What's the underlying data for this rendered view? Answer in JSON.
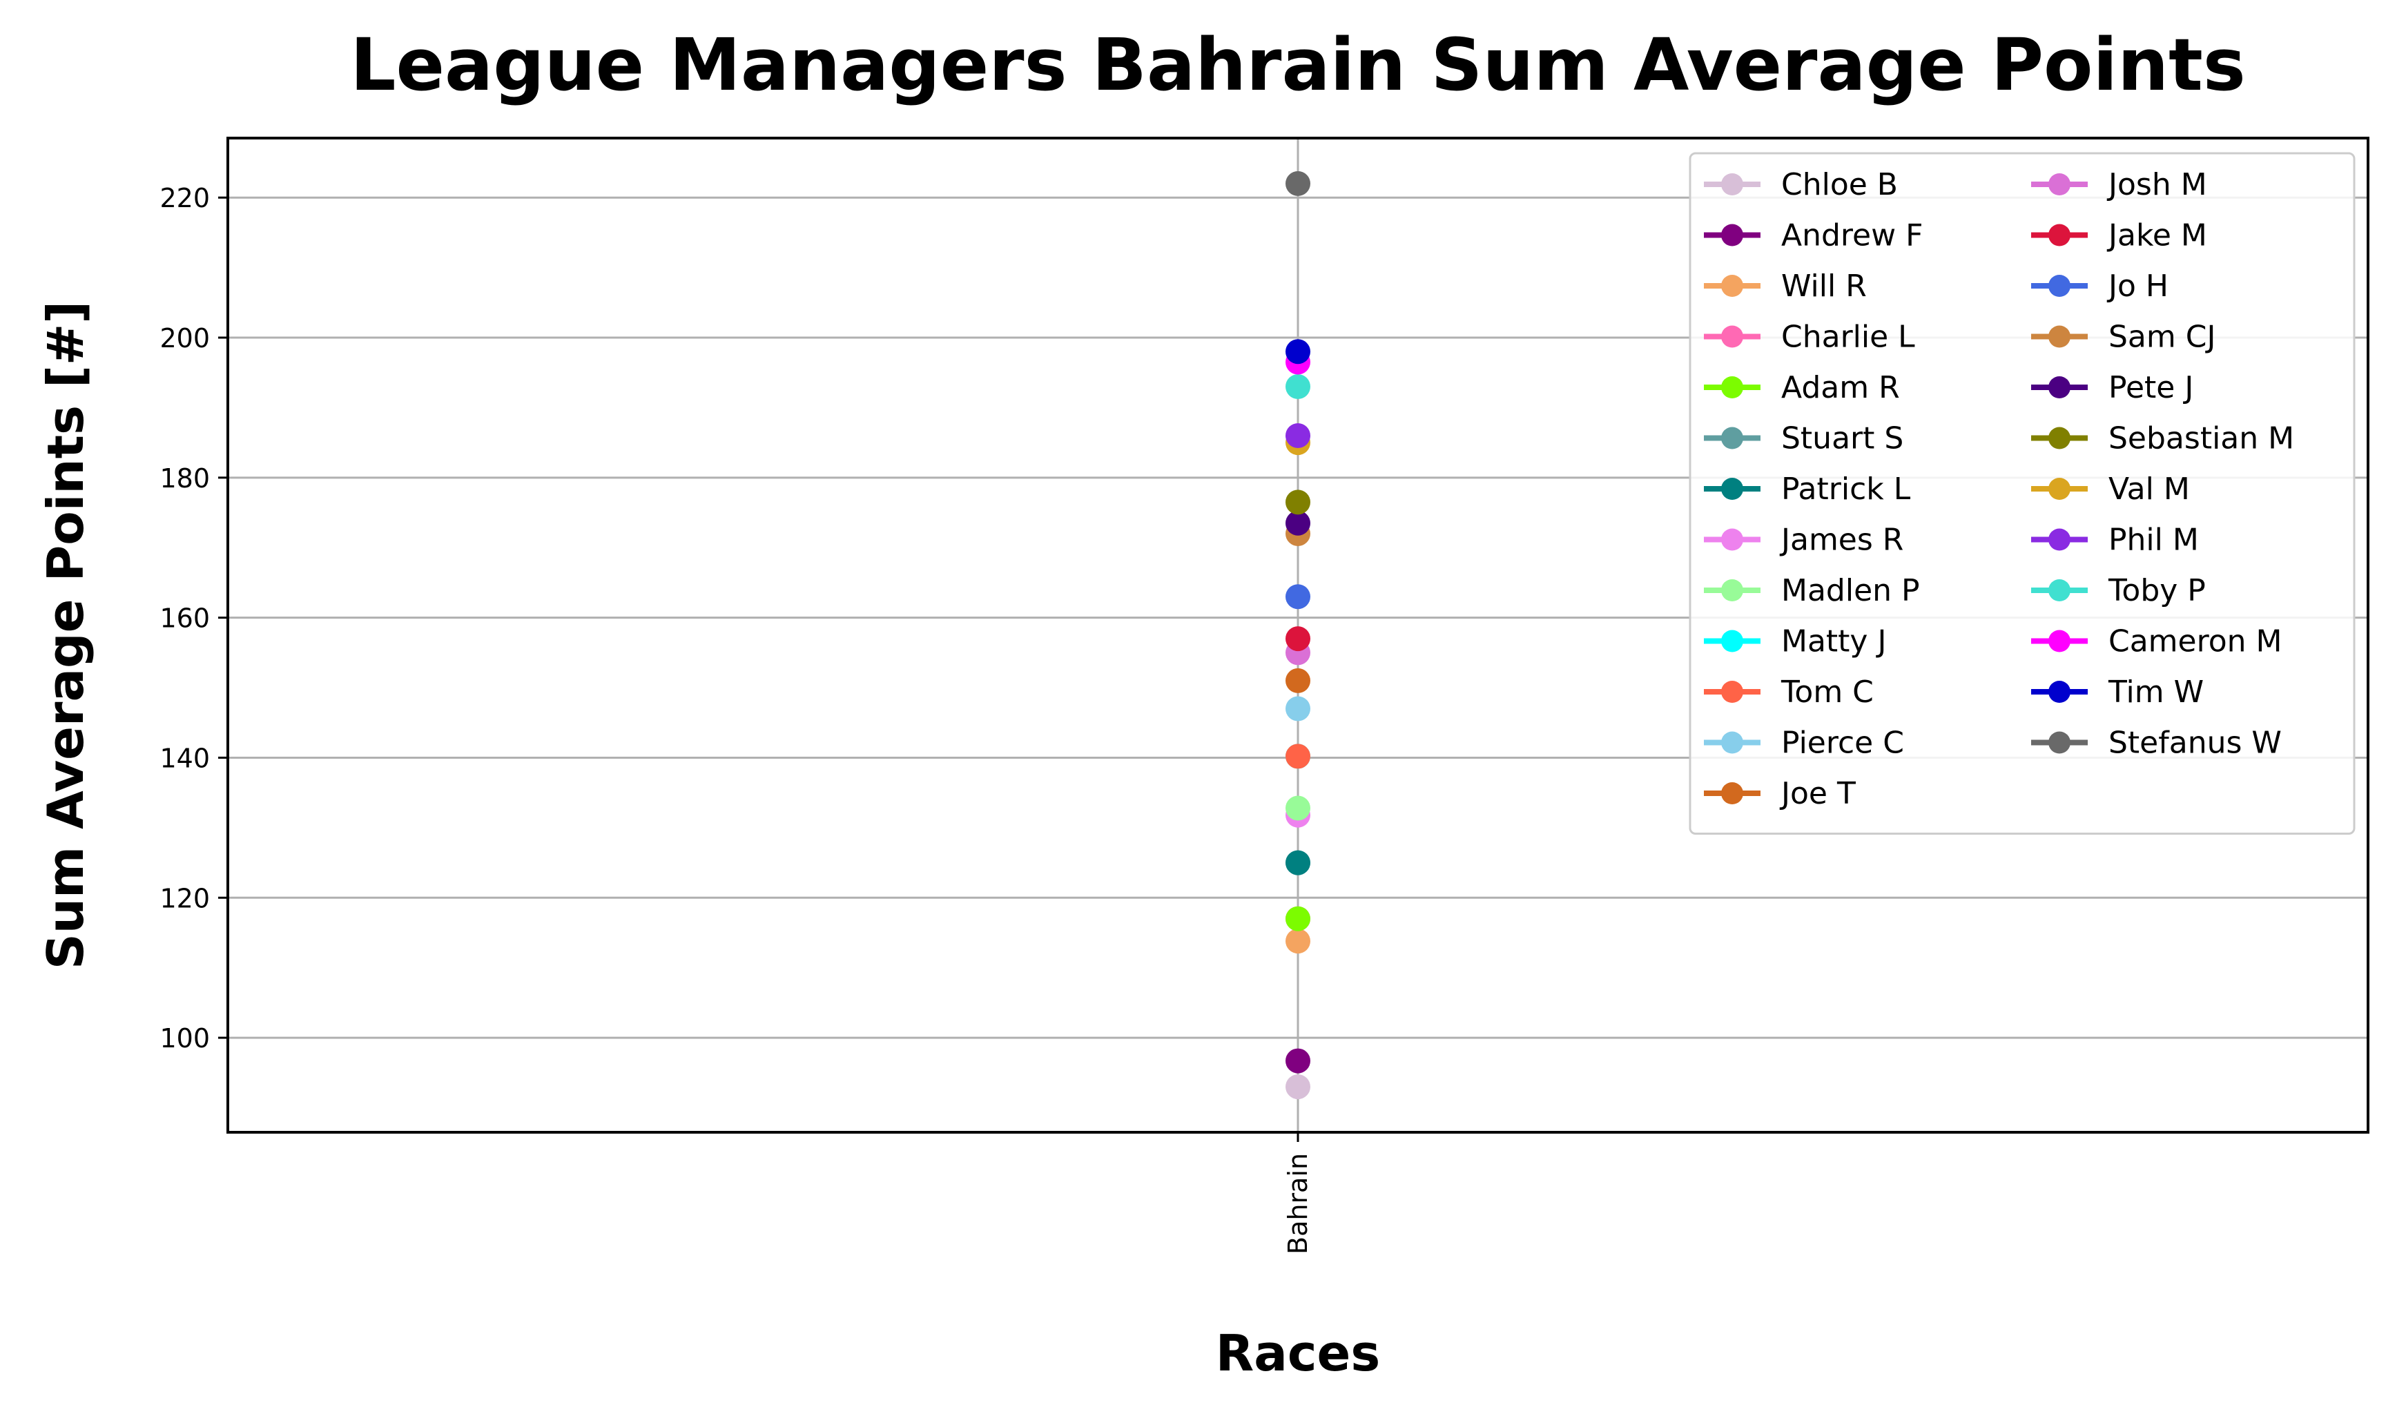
{
  "chart_data": {
    "type": "line",
    "title": "League Managers Bahrain Sum Average Points",
    "xlabel": "Races",
    "ylabel": "Sum Average Points [#]",
    "categories": [
      "Bahrain"
    ],
    "ylim": [
      86.5,
      228.5
    ],
    "yticks": [
      100,
      120,
      140,
      160,
      180,
      200,
      220
    ],
    "grid": true,
    "legend_position": "top-right",
    "legend_columns": 2,
    "series": [
      {
        "name": "Chloe B",
        "color": "#d8bfd8",
        "values": [
          93
        ]
      },
      {
        "name": "Andrew F",
        "color": "#800080",
        "values": [
          96.7
        ]
      },
      {
        "name": "Will R",
        "color": "#f4a460",
        "values": [
          113.8
        ]
      },
      {
        "name": "Charlie L",
        "color": "#ff69b4",
        "values": [
          117
        ]
      },
      {
        "name": "Adam R",
        "color": "#7cfc00",
        "values": [
          117
        ]
      },
      {
        "name": "Stuart S",
        "color": "#5f9ea0",
        "values": [
          125
        ]
      },
      {
        "name": "Patrick L",
        "color": "#008080",
        "values": [
          125
        ]
      },
      {
        "name": "James R",
        "color": "#ee82ee",
        "values": [
          131.8
        ]
      },
      {
        "name": "Madlen P",
        "color": "#98fb98",
        "values": [
          132.8
        ]
      },
      {
        "name": "Matty J",
        "color": "#00ffff",
        "values": [
          140.2
        ]
      },
      {
        "name": "Tom C",
        "color": "#ff6347",
        "values": [
          140.2
        ]
      },
      {
        "name": "Pierce C",
        "color": "#87ceeb",
        "values": [
          147
        ]
      },
      {
        "name": "Joe T",
        "color": "#d2691e",
        "values": [
          151
        ]
      },
      {
        "name": "Josh M",
        "color": "#da70d6",
        "values": [
          155
        ]
      },
      {
        "name": "Jake M",
        "color": "#dc143c",
        "values": [
          157
        ]
      },
      {
        "name": "Jo H",
        "color": "#4169e1",
        "values": [
          163
        ]
      },
      {
        "name": "Sam CJ",
        "color": "#cd853f",
        "values": [
          172
        ]
      },
      {
        "name": "Pete J",
        "color": "#4b0082",
        "values": [
          173.5
        ]
      },
      {
        "name": "Sebastian M",
        "color": "#808000",
        "values": [
          176.5
        ]
      },
      {
        "name": "Val M",
        "color": "#daa520",
        "values": [
          185
        ]
      },
      {
        "name": "Phil M",
        "color": "#8a2be2",
        "values": [
          186
        ]
      },
      {
        "name": "Toby P",
        "color": "#40e0d0",
        "values": [
          193
        ]
      },
      {
        "name": "Cameron M",
        "color": "#ff00ff",
        "values": [
          196.5
        ]
      },
      {
        "name": "Tim W",
        "color": "#0000cd",
        "values": [
          198
        ]
      },
      {
        "name": "Stefanus W",
        "color": "#696969",
        "values": [
          222
        ]
      }
    ]
  }
}
